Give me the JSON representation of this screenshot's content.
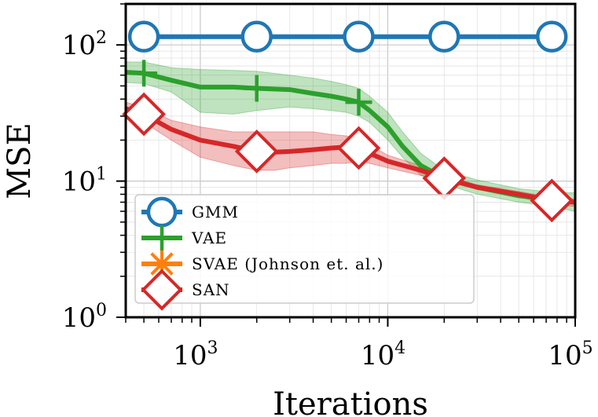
{
  "chart_data": {
    "type": "line",
    "title": "",
    "xlabel": "Iterations",
    "ylabel": "MSE",
    "xscale": "log",
    "yscale": "log",
    "xlim": [
      400,
      100000
    ],
    "ylim": [
      1,
      200
    ],
    "x_ticks": [
      {
        "value": 1000,
        "base": "10",
        "exp": "3"
      },
      {
        "value": 10000,
        "base": "10",
        "exp": "4"
      },
      {
        "value": 100000,
        "base": "10",
        "exp": "5"
      }
    ],
    "y_ticks": [
      {
        "value": 1,
        "base": "10",
        "exp": "0"
      },
      {
        "value": 10,
        "base": "10",
        "exp": "1"
      },
      {
        "value": 100,
        "base": "10",
        "exp": "2"
      }
    ],
    "grid": true,
    "legend_position": "bottom-left",
    "series": [
      {
        "name": "GMM",
        "color": "#1f77b4",
        "marker": "circle",
        "x": [
          500,
          2000,
          7000,
          20000,
          75000
        ],
        "y": [
          115,
          115,
          115,
          115,
          115
        ],
        "markers_x": [
          500,
          2000,
          7000,
          20000,
          75000
        ],
        "markers_y": [
          115,
          115,
          115,
          115,
          115
        ]
      },
      {
        "name": "VAE",
        "color": "#2ca02c",
        "marker": "plus",
        "x": [
          400,
          500,
          700,
          1000,
          1500,
          2000,
          3000,
          4000,
          5000,
          6000,
          7000,
          8000,
          10000,
          12000,
          15000,
          20000,
          30000,
          50000,
          75000,
          100000
        ],
        "y": [
          63,
          62,
          55,
          49,
          49,
          48,
          47,
          44,
          42,
          40,
          38,
          33,
          25,
          18,
          13,
          10.5,
          9,
          7.8,
          7.3,
          7.0
        ],
        "band_low": [
          53,
          52,
          45,
          32,
          31,
          33,
          35,
          34,
          33,
          32,
          30,
          27,
          20,
          15,
          11,
          9.5,
          8.0,
          7.0,
          6.5,
          6.0
        ],
        "band_high": [
          75,
          75,
          68,
          66,
          65,
          64,
          60,
          57,
          54,
          51,
          48,
          42,
          32,
          23,
          16,
          12,
          10.2,
          8.8,
          8.3,
          8.2
        ],
        "markers_x": [
          500,
          2000,
          7000
        ],
        "markers_y": [
          62,
          48,
          38
        ]
      },
      {
        "name": "SVAE (Johnson et. al.)",
        "color": "#ff7f0e",
        "marker": "x",
        "x": [],
        "y": [],
        "markers_x": [],
        "markers_y": []
      },
      {
        "name": "SAN",
        "color": "#d62728",
        "marker": "diamond",
        "x": [
          400,
          500,
          700,
          1000,
          1500,
          2000,
          2500,
          3000,
          4000,
          5000,
          6000,
          7000,
          8000,
          10000,
          15000,
          20000,
          30000,
          50000,
          75000,
          100000
        ],
        "y": [
          34,
          31,
          24,
          20,
          18,
          16.5,
          16.3,
          16.5,
          17,
          17.5,
          17.8,
          17.5,
          16,
          14,
          12,
          10.5,
          9,
          8,
          7.2,
          7.0
        ],
        "band_low": [
          30,
          27,
          20,
          15,
          13,
          12,
          12,
          12.5,
          13,
          13.5,
          13.5,
          14,
          13.5,
          12.5,
          11,
          10,
          8.7,
          7.6,
          6.8,
          6.5
        ],
        "band_high": [
          38,
          35,
          28,
          25,
          23,
          23,
          23,
          23,
          23,
          22,
          21.5,
          20.5,
          18.5,
          15.5,
          13,
          11,
          9.4,
          8.4,
          7.6,
          7.4
        ],
        "markers_x": [
          500,
          2000,
          7000,
          20000,
          75000
        ],
        "markers_y": [
          31,
          16.5,
          17.5,
          10.5,
          7.2
        ]
      }
    ]
  }
}
